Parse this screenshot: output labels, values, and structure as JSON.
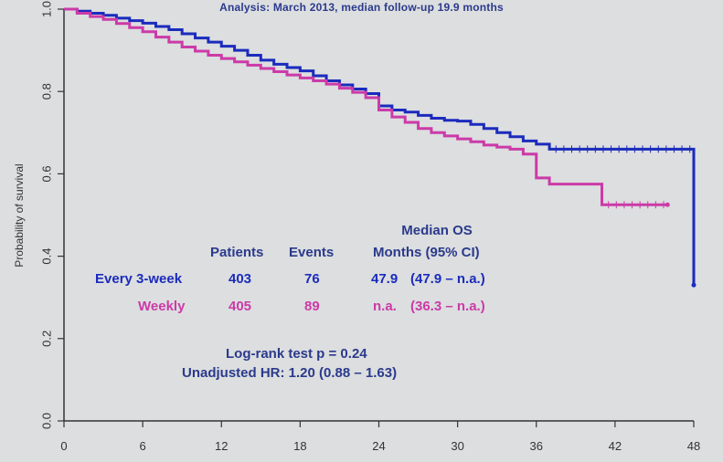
{
  "header": {
    "analysis_note": "Analysis:  March 2013, median follow-up  19.9 months"
  },
  "table": {
    "col_patients": "Patients",
    "col_events": "Events",
    "col_median_os_line1": "Median OS",
    "col_median_os_line2": "Months (95% CI)",
    "rows": [
      {
        "arm": "Every 3-week",
        "patients": "403",
        "events": "76",
        "median": "47.9",
        "ci": "(47.9 – n.a.)"
      },
      {
        "arm": "Weekly",
        "patients": "405",
        "events": "89",
        "median": "n.a.",
        "ci": "(36.3 – n.a.)"
      }
    ]
  },
  "stats": {
    "logrank": "Log-rank test  p = 0.24",
    "hr": "Unadjusted HR: 1.20  (0.88 – 1.63)"
  },
  "colors": {
    "every_3_week": "#1b2bbd",
    "weekly": "#cc3aa8",
    "axis": "#333333",
    "text": "#2b3a8c"
  },
  "chart_data": {
    "type": "line",
    "subtype": "kaplan-meier",
    "ylabel": "Probability of survival",
    "xlabel": "",
    "xlim": [
      0,
      48
    ],
    "ylim": [
      0,
      1
    ],
    "x_ticks": [
      "0",
      "6",
      "12",
      "18",
      "24",
      "30",
      "36",
      "42",
      "48"
    ],
    "y_ticks": [
      "0.0",
      "0.2",
      "0.4",
      "0.6",
      "0.8",
      "1.0"
    ],
    "series": [
      {
        "name": "Every 3-week",
        "color": "#1b2bbd",
        "x": [
          0,
          1,
          2,
          3,
          4,
          5,
          6,
          7,
          8,
          9,
          10,
          11,
          12,
          13,
          14,
          15,
          16,
          17,
          18,
          19,
          20,
          21,
          22,
          23,
          24,
          25,
          26,
          27,
          28,
          29,
          30,
          31,
          32,
          33,
          34,
          35,
          36,
          37,
          40,
          44,
          47.9,
          48
        ],
        "y": [
          1.0,
          0.995,
          0.99,
          0.985,
          0.978,
          0.972,
          0.966,
          0.958,
          0.95,
          0.94,
          0.93,
          0.92,
          0.91,
          0.9,
          0.888,
          0.876,
          0.866,
          0.858,
          0.85,
          0.838,
          0.826,
          0.816,
          0.806,
          0.795,
          0.765,
          0.755,
          0.75,
          0.742,
          0.735,
          0.73,
          0.728,
          0.72,
          0.71,
          0.7,
          0.69,
          0.68,
          0.672,
          0.66,
          0.66,
          0.66,
          0.66,
          0.33
        ]
      },
      {
        "name": "Weekly",
        "color": "#cc3aa8",
        "x": [
          0,
          1,
          2,
          3,
          4,
          5,
          6,
          7,
          8,
          9,
          10,
          11,
          12,
          13,
          14,
          15,
          16,
          17,
          18,
          19,
          20,
          21,
          22,
          23,
          24,
          25,
          26,
          27,
          28,
          29,
          30,
          31,
          32,
          33,
          34,
          35,
          36,
          37,
          40,
          41,
          44,
          46
        ],
        "y": [
          1.0,
          0.99,
          0.982,
          0.975,
          0.965,
          0.955,
          0.945,
          0.932,
          0.92,
          0.908,
          0.898,
          0.888,
          0.88,
          0.872,
          0.864,
          0.856,
          0.848,
          0.84,
          0.833,
          0.826,
          0.818,
          0.808,
          0.798,
          0.785,
          0.755,
          0.738,
          0.725,
          0.71,
          0.7,
          0.692,
          0.685,
          0.678,
          0.67,
          0.665,
          0.66,
          0.648,
          0.59,
          0.575,
          0.575,
          0.525,
          0.525,
          0.525
        ]
      }
    ]
  }
}
